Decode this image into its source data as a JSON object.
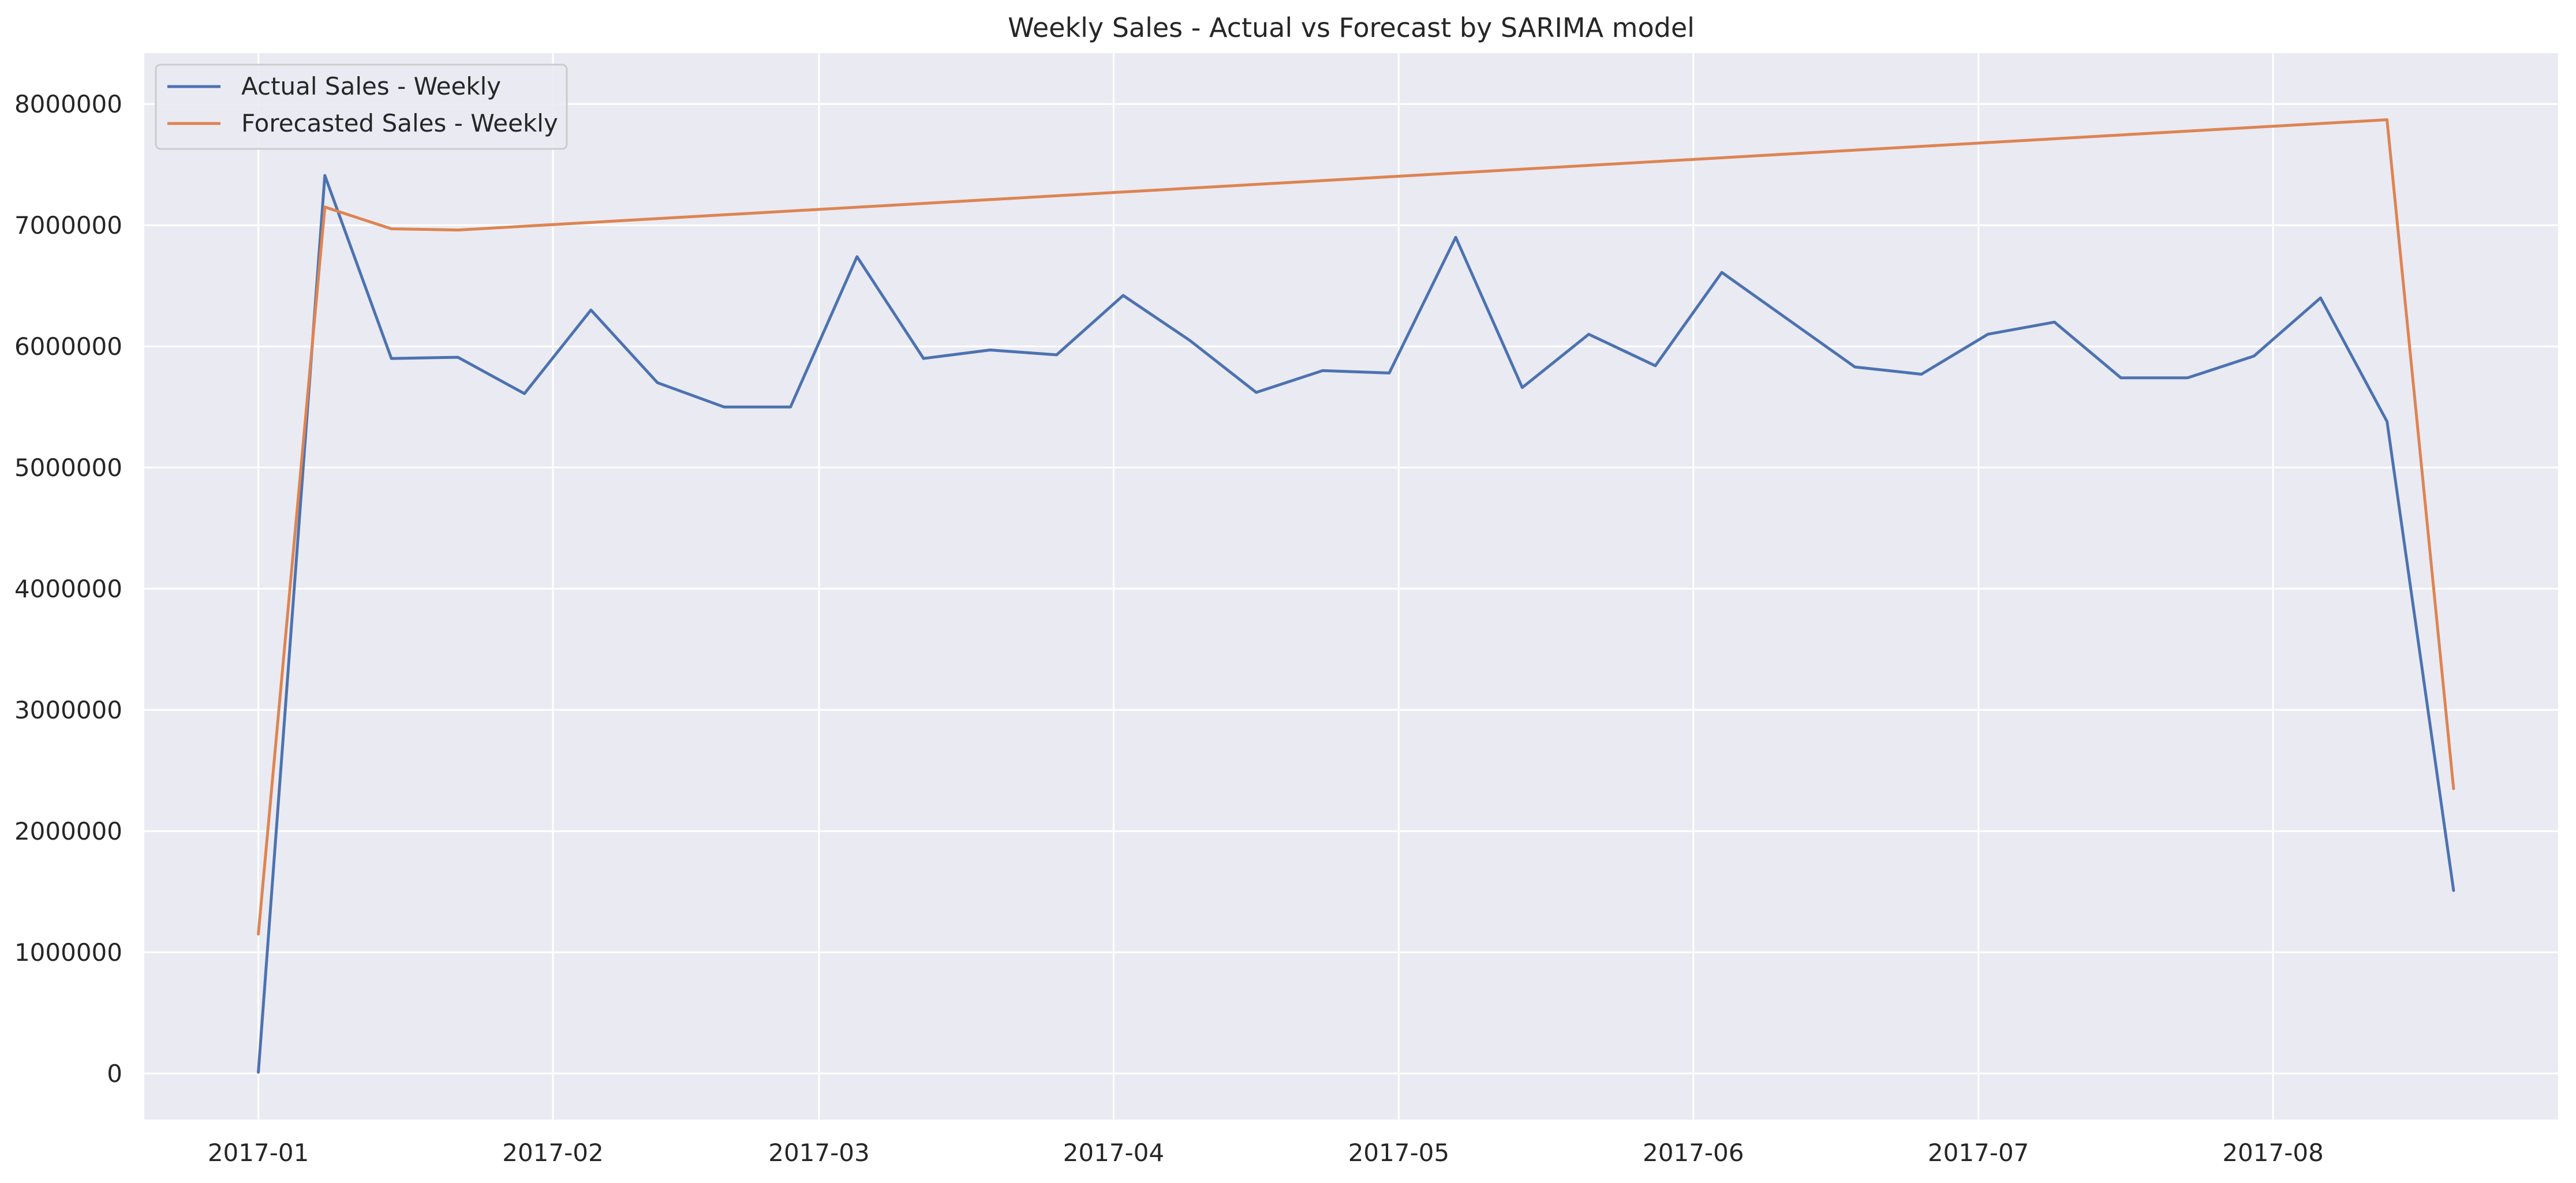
{
  "chart_data": {
    "type": "line",
    "title": "Weekly Sales - Actual vs Forecast by SARIMA model",
    "xlabel": "",
    "ylabel": "",
    "x_axis_type": "date",
    "x_ticks": [
      "2017-01",
      "2017-02",
      "2017-03",
      "2017-04",
      "2017-05",
      "2017-06",
      "2017-07",
      "2017-08"
    ],
    "y_ticks": [
      0,
      1000000,
      2000000,
      3000000,
      4000000,
      5000000,
      6000000,
      7000000,
      8000000
    ],
    "ylim": [
      -380000,
      8420000
    ],
    "xlim": [
      "2016-12-20",
      "2017-08-31"
    ],
    "grid": true,
    "legend_position": "upper-left",
    "series": [
      {
        "name": "Actual Sales - Weekly",
        "color": "#4c72b0",
        "points": [
          [
            "2017-01-01",
            10000
          ],
          [
            "2017-01-08",
            7410000
          ],
          [
            "2017-01-15",
            5900000
          ],
          [
            "2017-01-22",
            5910000
          ],
          [
            "2017-01-29",
            5610000
          ],
          [
            "2017-02-05",
            6300000
          ],
          [
            "2017-02-12",
            5700000
          ],
          [
            "2017-02-19",
            5500000
          ],
          [
            "2017-02-26",
            5500000
          ],
          [
            "2017-03-05",
            6740000
          ],
          [
            "2017-03-12",
            5900000
          ],
          [
            "2017-03-19",
            5970000
          ],
          [
            "2017-03-26",
            5930000
          ],
          [
            "2017-04-02",
            6420000
          ],
          [
            "2017-04-09",
            6050000
          ],
          [
            "2017-04-16",
            5620000
          ],
          [
            "2017-04-23",
            5800000
          ],
          [
            "2017-04-30",
            5780000
          ],
          [
            "2017-05-07",
            6900000
          ],
          [
            "2017-05-14",
            5660000
          ],
          [
            "2017-05-21",
            6100000
          ],
          [
            "2017-05-28",
            5840000
          ],
          [
            "2017-06-04",
            6610000
          ],
          [
            "2017-06-11",
            6220000
          ],
          [
            "2017-06-18",
            5830000
          ],
          [
            "2017-06-25",
            5770000
          ],
          [
            "2017-07-02",
            6100000
          ],
          [
            "2017-07-09",
            6200000
          ],
          [
            "2017-07-16",
            5740000
          ],
          [
            "2017-07-23",
            5740000
          ],
          [
            "2017-07-30",
            5920000
          ],
          [
            "2017-08-06",
            6400000
          ],
          [
            "2017-08-13",
            5380000
          ],
          [
            "2017-08-20",
            1510000
          ]
        ]
      },
      {
        "name": "Forecasted Sales - Weekly",
        "color": "#dd8452",
        "points": [
          [
            "2017-01-01",
            1150000
          ],
          [
            "2017-01-08",
            7150000
          ],
          [
            "2017-01-15",
            6970000
          ],
          [
            "2017-01-22",
            6960000
          ],
          [
            "2017-08-13",
            7870000
          ],
          [
            "2017-08-20",
            2350000
          ]
        ]
      }
    ]
  }
}
